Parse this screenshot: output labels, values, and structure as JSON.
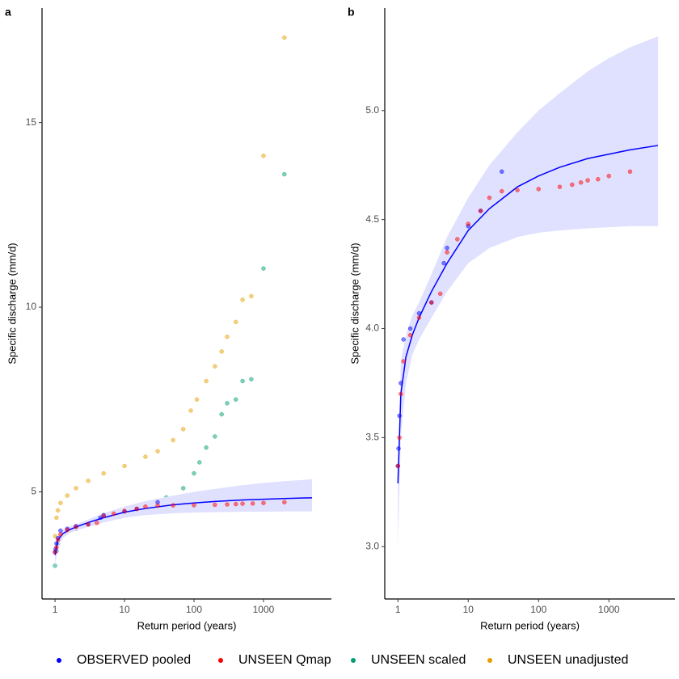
{
  "chart_data": [
    {
      "type": "scatter",
      "panel_label": "a",
      "x_label": "Return period (years)",
      "y_label": "Specific discharge (mm/d)",
      "xscale": "log",
      "xlim": [
        0.65,
        9500
      ],
      "ylim": [
        2.1,
        18.1
      ],
      "xticks": [
        1,
        10,
        100,
        1000
      ],
      "yticks": [
        5,
        10,
        15
      ],
      "series": [
        {
          "name": "UNSEEN unadjusted",
          "color": "#e69f00",
          "x": [
            1.0,
            1.05,
            1.1,
            1.2,
            1.5,
            2,
            3,
            5,
            10,
            20,
            30,
            50,
            70,
            90,
            110,
            150,
            200,
            250,
            300,
            400,
            500,
            667,
            1000,
            2000
          ],
          "values": [
            3.8,
            4.3,
            4.5,
            4.7,
            4.9,
            5.1,
            5.3,
            5.5,
            5.7,
            5.95,
            6.1,
            6.4,
            6.7,
            7.2,
            7.5,
            8.0,
            8.4,
            8.8,
            9.2,
            9.6,
            10.2,
            10.3,
            14.1,
            17.3
          ]
        },
        {
          "name": "UNSEEN scaled",
          "color": "#009e73",
          "x": [
            1.0,
            1.05,
            1.1,
            1.3,
            2,
            5,
            10,
            20,
            40,
            70,
            100,
            120,
            150,
            200,
            250,
            300,
            400,
            500,
            667,
            1000,
            2000
          ],
          "values": [
            3.0,
            3.4,
            3.6,
            3.85,
            4.0,
            4.25,
            4.4,
            4.6,
            4.85,
            5.1,
            5.5,
            5.8,
            6.2,
            6.5,
            7.1,
            7.4,
            7.5,
            8.0,
            8.05,
            11.05,
            13.6
          ]
        },
        {
          "name": "OBSERVED pooled",
          "color": "#0000ff",
          "x": [
            1.0,
            1.02,
            1.05,
            1.1,
            1.2,
            1.5,
            2,
            3,
            4.5,
            5,
            10,
            15,
            30
          ],
          "values": [
            3.37,
            3.45,
            3.6,
            3.75,
            3.95,
            4.0,
            4.07,
            4.12,
            4.3,
            4.37,
            4.47,
            4.54,
            4.72
          ]
        },
        {
          "name": "UNSEEN Qmap",
          "color": "#ff0000",
          "x": [
            1.0,
            1.05,
            1.1,
            1.2,
            1.5,
            2,
            3,
            4,
            5,
            7,
            10,
            15,
            20,
            30,
            50,
            100,
            200,
            300,
            400,
            500,
            700,
            1000,
            2000
          ],
          "values": [
            3.37,
            3.5,
            3.7,
            3.85,
            3.97,
            4.05,
            4.12,
            4.16,
            4.35,
            4.41,
            4.48,
            4.54,
            4.6,
            4.63,
            4.635,
            4.64,
            4.65,
            4.66,
            4.67,
            4.68,
            4.685,
            4.7,
            4.72
          ]
        }
      ],
      "fit": {
        "color": "#0000ff",
        "band_color": "#e0e0ff",
        "x": [
          1,
          1.1,
          1.3,
          1.6,
          2,
          3,
          5,
          10,
          20,
          50,
          100,
          200,
          500,
          1000,
          2000,
          5000
        ],
        "values": [
          3.29,
          3.7,
          3.87,
          3.97,
          4.05,
          4.17,
          4.3,
          4.45,
          4.55,
          4.65,
          4.7,
          4.74,
          4.78,
          4.8,
          4.82,
          4.84
        ],
        "lower": [
          3.0,
          3.5,
          3.75,
          3.88,
          3.95,
          4.05,
          4.17,
          4.3,
          4.37,
          4.42,
          4.44,
          4.45,
          4.46,
          4.465,
          4.47,
          4.47
        ],
        "upper": [
          3.3,
          3.85,
          3.97,
          4.06,
          4.12,
          4.25,
          4.42,
          4.6,
          4.75,
          4.9,
          5.0,
          5.08,
          5.18,
          5.24,
          5.29,
          5.34
        ]
      }
    },
    {
      "type": "scatter",
      "panel_label": "b",
      "x_label": "Return period (years)",
      "y_label": "Specific discharge (mm/d)",
      "xscale": "log",
      "xlim": [
        0.65,
        8700
      ],
      "ylim": [
        2.76,
        5.47
      ],
      "xticks": [
        1,
        10,
        100,
        1000
      ],
      "yticks": [
        {
          "value": 3,
          "label": "3.0"
        },
        3.5,
        {
          "value": 4,
          "label": "4.0"
        },
        4.5,
        {
          "value": 5,
          "label": "5.0"
        }
      ],
      "series": [
        {
          "name": "OBSERVED pooled",
          "color": "#0000ff",
          "x": [
            1.0,
            1.02,
            1.05,
            1.1,
            1.2,
            1.5,
            2,
            3,
            4.5,
            5,
            10,
            15,
            30
          ],
          "values": [
            3.37,
            3.45,
            3.6,
            3.75,
            3.95,
            4.0,
            4.07,
            4.12,
            4.3,
            4.37,
            4.47,
            4.54,
            4.72
          ]
        },
        {
          "name": "UNSEEN Qmap",
          "color": "#ff0000",
          "x": [
            1.0,
            1.05,
            1.1,
            1.2,
            1.5,
            2,
            3,
            4,
            5,
            7,
            10,
            15,
            20,
            30,
            50,
            100,
            200,
            300,
            400,
            500,
            700,
            1000,
            2000
          ],
          "values": [
            3.37,
            3.5,
            3.7,
            3.85,
            3.97,
            4.05,
            4.12,
            4.16,
            4.35,
            4.41,
            4.48,
            4.54,
            4.6,
            4.63,
            4.635,
            4.64,
            4.65,
            4.66,
            4.67,
            4.68,
            4.685,
            4.7,
            4.72
          ]
        }
      ],
      "fit": {
        "color": "#0000ff",
        "band_color": "#e0e0ff",
        "x": [
          1,
          1.1,
          1.3,
          1.6,
          2,
          3,
          5,
          10,
          20,
          50,
          100,
          200,
          500,
          1000,
          2000,
          5000
        ],
        "values": [
          3.29,
          3.7,
          3.87,
          3.97,
          4.05,
          4.17,
          4.3,
          4.45,
          4.55,
          4.65,
          4.7,
          4.74,
          4.78,
          4.8,
          4.82,
          4.84
        ],
        "lower": [
          3.0,
          3.5,
          3.75,
          3.88,
          3.95,
          4.05,
          4.17,
          4.3,
          4.37,
          4.42,
          4.44,
          4.45,
          4.46,
          4.465,
          4.47,
          4.47
        ],
        "upper": [
          3.3,
          3.85,
          3.97,
          4.06,
          4.12,
          4.25,
          4.42,
          4.6,
          4.75,
          4.9,
          5.0,
          5.08,
          5.18,
          5.24,
          5.29,
          5.34
        ]
      }
    }
  ]
}
